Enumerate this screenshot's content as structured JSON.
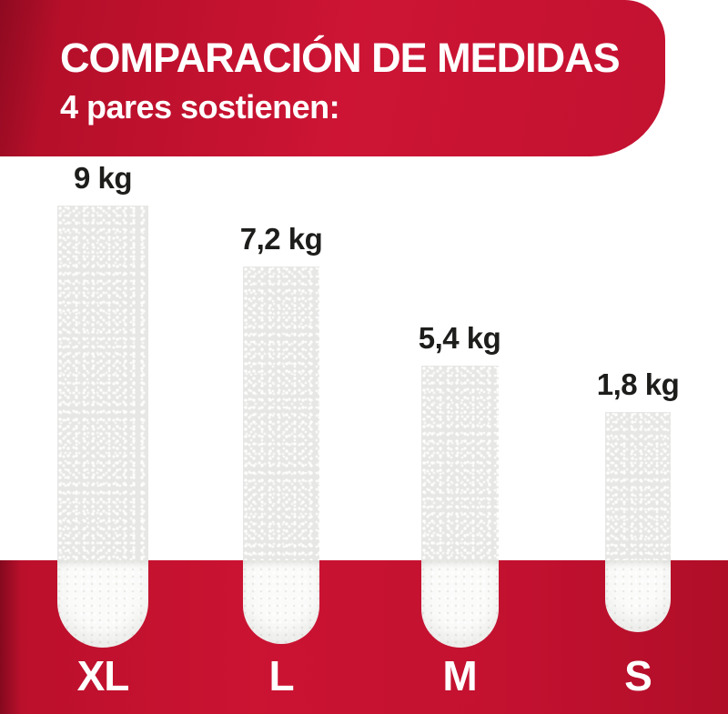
{
  "header": {
    "title": "COMPARACIÓN DE MEDIDAS",
    "subtitle": "4 pares sostienen:"
  },
  "chart_data": {
    "type": "bar",
    "title": "COMPARACIÓN DE MEDIDAS",
    "subtitle": "4 pares sostienen:",
    "unit": "kg",
    "categories": [
      "XL",
      "L",
      "M",
      "S"
    ],
    "values": [
      9,
      7.2,
      5.4,
      1.8
    ],
    "bars": [
      {
        "size": "XL",
        "weight_kg": 9,
        "weight_label": "9 kg"
      },
      {
        "size": "L",
        "weight_kg": 7.2,
        "weight_label": "7,2 kg"
      },
      {
        "size": "M",
        "weight_kg": 5.4,
        "weight_label": "5,4 kg"
      },
      {
        "size": "S",
        "weight_kg": 1.8,
        "weight_label": "1,8 kg"
      }
    ],
    "legend": "none",
    "axes": "none",
    "layout_hint": "strip-size comparison infographic; bars drawn as adhesive strips over a red base band"
  },
  "colors": {
    "brand_red": "#c41231",
    "brand_red_dark": "#8e0a20",
    "label_dark": "#1d1d1b",
    "strip_gray": "#e7e7e5",
    "strip_white": "#fbfbfa",
    "text_white": "#ffffff"
  }
}
